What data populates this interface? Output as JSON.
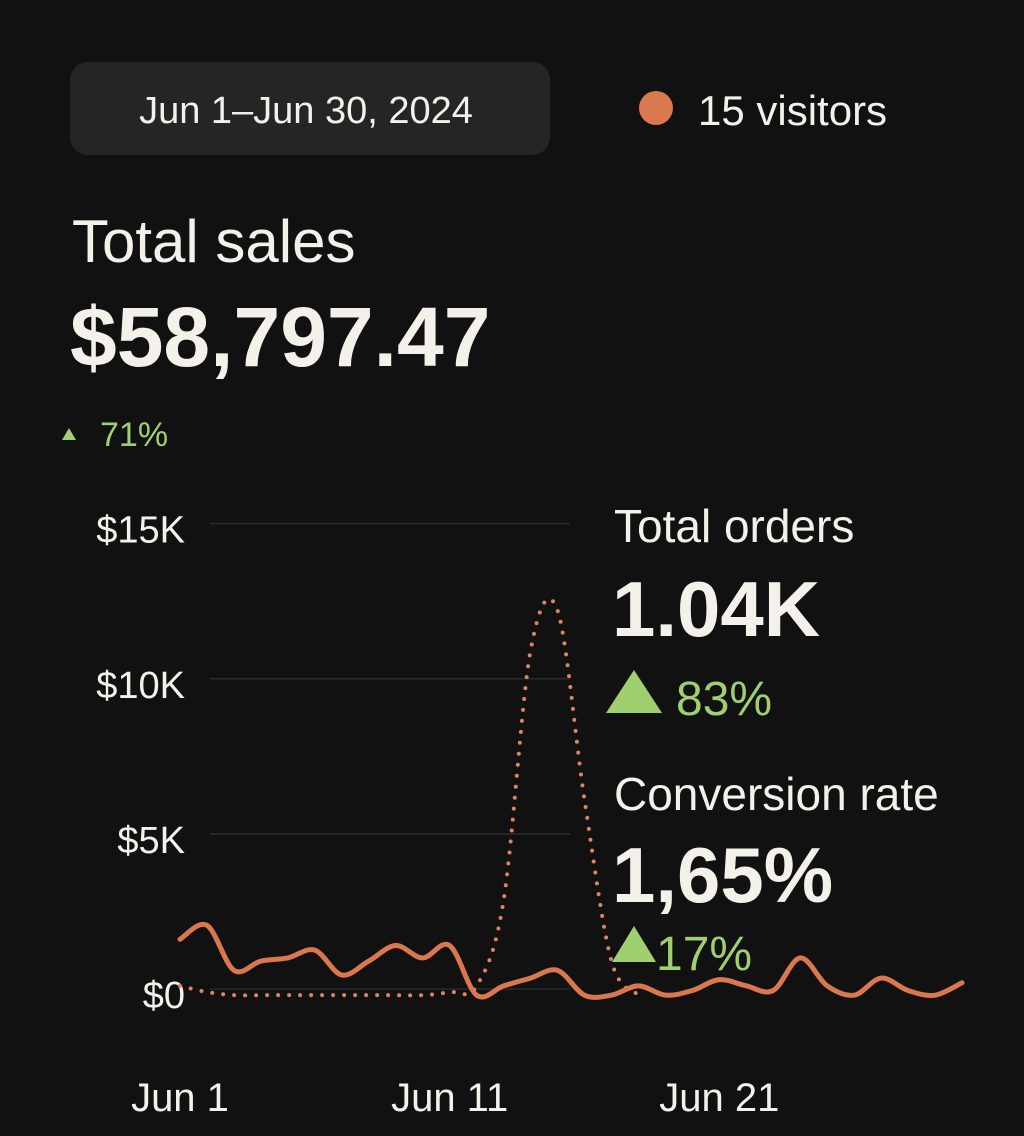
{
  "header": {
    "date_range": "Jun 1–Jun 30, 2024",
    "visitors": "15 visitors"
  },
  "metrics": [
    {
      "label": "Total sales",
      "value": "$58,797.47",
      "change": "71%"
    },
    {
      "label": "Total orders",
      "value": "1.04K",
      "change": "83%"
    },
    {
      "label": "Conversion rate",
      "value": "1,65%",
      "change": "17%"
    }
  ],
  "chart_data": {
    "type": "line",
    "categories": [
      "Jun 1",
      null,
      null,
      null,
      null,
      null,
      null,
      null,
      null,
      null,
      "Jun 11",
      null,
      null,
      null,
      null,
      null,
      null,
      null,
      null,
      null,
      "Jun 21",
      null,
      null,
      null,
      null,
      null,
      null,
      null,
      null,
      null
    ],
    "series": [
      {
        "color": "#d9774f",
        "style": "solid",
        "values": [
          1800,
          2250,
          800,
          1100,
          1200,
          1450,
          650,
          1100,
          1600,
          1200,
          1600,
          0,
          300,
          550,
          800,
          0,
          0,
          300,
          0,
          150,
          500,
          300,
          150,
          1200,
          300,
          0,
          550,
          150,
          0,
          400
        ]
      },
      {
        "color": "#dd8460",
        "style": "dotted",
        "values": [
          300,
          100,
          0,
          0,
          0,
          0,
          0,
          0,
          0,
          0,
          100,
          300,
          3050,
          11100,
          12400,
          6300,
          1100,
          0,
          null,
          null,
          null,
          null,
          null,
          null,
          null,
          null,
          null,
          null,
          null,
          null
        ]
      }
    ],
    "ylim": [
      -800,
      15600
    ],
    "yticks": [
      {
        "value": 0,
        "label": "$0"
      },
      {
        "value": 5000,
        "label": "$5K"
      },
      {
        "value": 10000,
        "label": "$10K"
      },
      {
        "value": 15000,
        "label": "$15K"
      }
    ],
    "grid": true
  }
}
